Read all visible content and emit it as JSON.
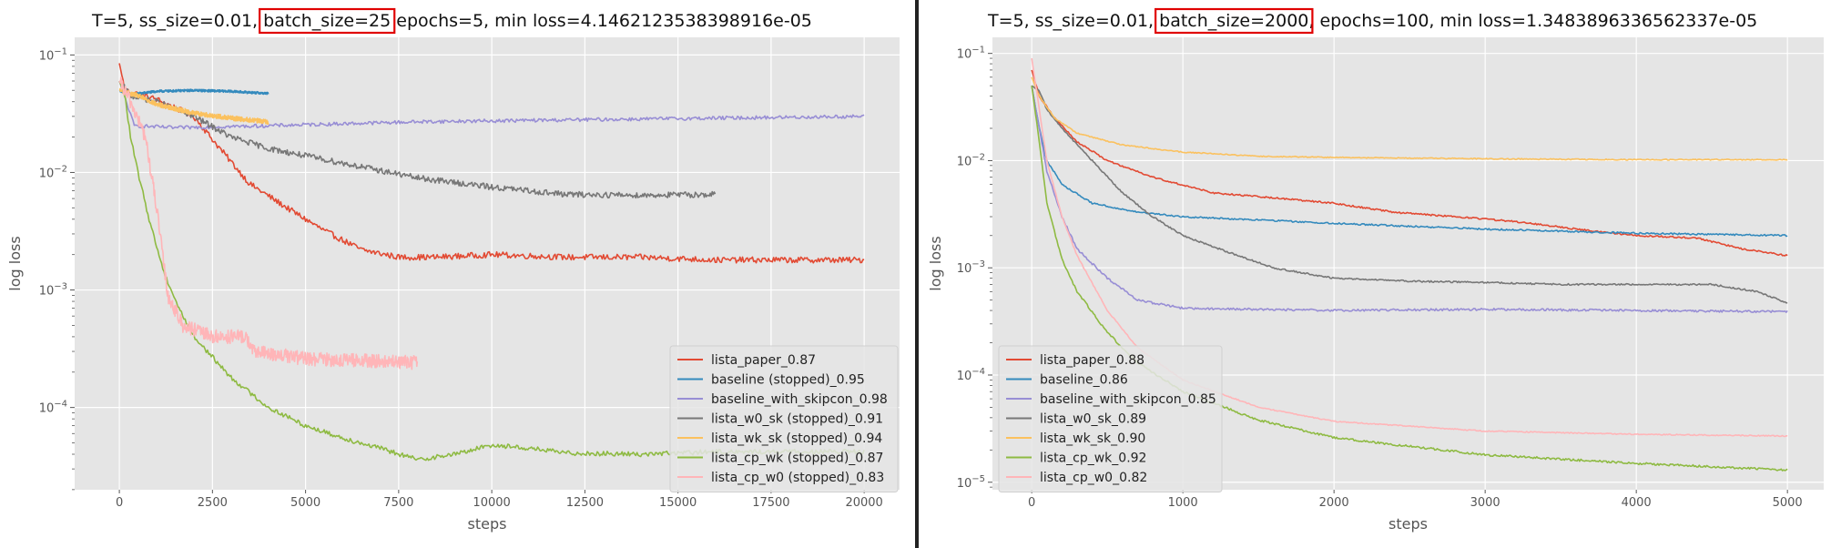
{
  "chart_data": [
    {
      "type": "line",
      "title_parts": [
        "T=5,  ss_size=0.01, ",
        "batch_size=25",
        "  epochs=5,  min loss=4.1462123538398916e-05"
      ],
      "highlight_color": "#e00000",
      "xlabel": "steps",
      "ylabel": "log loss",
      "yscale": "log",
      "xlim": [
        -1200,
        20950
      ],
      "ylim_log10": [
        -4.7,
        -0.85
      ],
      "xticks": [
        0,
        2500,
        5000,
        7500,
        10000,
        12500,
        15000,
        17500,
        20000
      ],
      "xtick_labels": [
        "0",
        "2500",
        "5000",
        "7500",
        "10000",
        "12500",
        "15000",
        "17500",
        "20000"
      ],
      "yticks_exp": [
        -4,
        -3,
        -2,
        -1
      ],
      "ytick_bases": [
        "10",
        "10",
        "10",
        "10"
      ],
      "ytick_exps": [
        "−4",
        "−3",
        "−2",
        "−1"
      ],
      "grid": true,
      "legend_position": "lower-right",
      "series": [
        {
          "name": "lista_paper_0.87",
          "color": "#E24A33",
          "noise": 0.05,
          "points": [
            [
              0,
              0.085
            ],
            [
              150,
              0.05
            ],
            [
              1000,
              0.042
            ],
            [
              2000,
              0.03
            ],
            [
              2700,
              0.016
            ],
            [
              3500,
              0.008
            ],
            [
              4500,
              0.005
            ],
            [
              5500,
              0.0032
            ],
            [
              6500,
              0.0022
            ],
            [
              7500,
              0.0019
            ],
            [
              8500,
              0.0019
            ],
            [
              10000,
              0.002
            ],
            [
              12000,
              0.0019
            ],
            [
              14000,
              0.0019
            ],
            [
              16000,
              0.0018
            ],
            [
              18000,
              0.0018
            ],
            [
              20000,
              0.0018
            ]
          ]
        },
        {
          "name": "baseline (stopped)_0.95",
          "color": "#348ABD",
          "noise": 0.02,
          "points": [
            [
              0,
              0.05
            ],
            [
              300,
              0.046
            ],
            [
              1000,
              0.049
            ],
            [
              2000,
              0.05
            ],
            [
              3000,
              0.049
            ],
            [
              4000,
              0.047
            ]
          ]
        },
        {
          "name": "baseline_with_skipcon_0.98",
          "color": "#988ED5",
          "noise": 0.03,
          "points": [
            [
              0,
              0.06
            ],
            [
              400,
              0.025
            ],
            [
              1500,
              0.024
            ],
            [
              4000,
              0.025
            ],
            [
              8000,
              0.027
            ],
            [
              12000,
              0.028
            ],
            [
              16000,
              0.029
            ],
            [
              20000,
              0.03
            ]
          ]
        },
        {
          "name": "lista_w0_sk (stopped)_0.91",
          "color": "#777777",
          "noise": 0.05,
          "points": [
            [
              0,
              0.06
            ],
            [
              300,
              0.045
            ],
            [
              1000,
              0.04
            ],
            [
              2000,
              0.03
            ],
            [
              3000,
              0.02
            ],
            [
              4000,
              0.016
            ],
            [
              6000,
              0.012
            ],
            [
              8000,
              0.009
            ],
            [
              10000,
              0.0075
            ],
            [
              12000,
              0.0065
            ],
            [
              14000,
              0.0064
            ],
            [
              16000,
              0.0065
            ]
          ]
        },
        {
          "name": "lista_wk_sk (stopped)_0.94",
          "color": "#FBC15E",
          "noise": 0.04,
          "points": [
            [
              0,
              0.05
            ],
            [
              500,
              0.045
            ],
            [
              1000,
              0.038
            ],
            [
              2000,
              0.032
            ],
            [
              3000,
              0.029
            ],
            [
              4000,
              0.027
            ]
          ]
        },
        {
          "name": "lista_cp_wk (stopped)_0.87",
          "color": "#8EBA42",
          "noise": 0.04,
          "points": [
            [
              0,
              0.06
            ],
            [
              150,
              0.045
            ],
            [
              300,
              0.02
            ],
            [
              500,
              0.01
            ],
            [
              800,
              0.004
            ],
            [
              1200,
              0.0014
            ],
            [
              1600,
              0.0007
            ],
            [
              2000,
              0.0004
            ],
            [
              3000,
              0.00018
            ],
            [
              4000,
              0.0001
            ],
            [
              5000,
              7e-05
            ],
            [
              6000,
              5.5e-05
            ],
            [
              7000,
              4.5e-05
            ],
            [
              8000,
              3.6e-05
            ],
            [
              9000,
              4e-05
            ],
            [
              10000,
              4.8e-05
            ],
            [
              11000,
              4.5e-05
            ],
            [
              12000,
              4.1e-05
            ],
            [
              14000,
              4e-05
            ],
            [
              16000,
              4.2e-05
            ],
            [
              20000,
              4.2e-05
            ]
          ]
        },
        {
          "name": "lista_cp_w0 (stopped)_0.83",
          "color": "#FFB5B8",
          "noise": 0.12,
          "points": [
            [
              0,
              0.06
            ],
            [
              300,
              0.04
            ],
            [
              700,
              0.02
            ],
            [
              1000,
              0.005
            ],
            [
              1300,
              0.0009
            ],
            [
              1700,
              0.0005
            ],
            [
              2500,
              0.0004
            ],
            [
              3400,
              0.0004
            ],
            [
              3600,
              0.0003
            ],
            [
              5000,
              0.00026
            ],
            [
              6500,
              0.00025
            ],
            [
              8000,
              0.00024
            ]
          ]
        }
      ]
    },
    {
      "type": "line",
      "title_parts": [
        "T=5,  ss_size=0.01, ",
        "batch_size=2000",
        ", epochs=100,  min loss=1.3483896336562337e-05"
      ],
      "highlight_color": "#e00000",
      "xlabel": "steps",
      "ylabel": "log loss",
      "yscale": "log",
      "xlim": [
        -260,
        5240
      ],
      "ylim_log10": [
        -5.07,
        -0.85
      ],
      "xticks": [
        0,
        1000,
        2000,
        3000,
        4000,
        5000
      ],
      "xtick_labels": [
        "0",
        "1000",
        "2000",
        "3000",
        "4000",
        "5000"
      ],
      "yticks_exp": [
        -5,
        -4,
        -3,
        -2,
        -1
      ],
      "ytick_bases": [
        "10",
        "10",
        "10",
        "10",
        "10"
      ],
      "ytick_exps": [
        "−5",
        "−4",
        "−3",
        "−2",
        "−1"
      ],
      "grid": true,
      "legend_position": "lower-left",
      "series": [
        {
          "name": "lista_paper_0.88",
          "color": "#E24A33",
          "noise": 0.015,
          "points": [
            [
              0,
              0.07
            ],
            [
              50,
              0.04
            ],
            [
              150,
              0.025
            ],
            [
              300,
              0.015
            ],
            [
              500,
              0.01
            ],
            [
              800,
              0.007
            ],
            [
              1200,
              0.005
            ],
            [
              1600,
              0.0045
            ],
            [
              2000,
              0.004
            ],
            [
              2400,
              0.0033
            ],
            [
              2800,
              0.003
            ],
            [
              3200,
              0.0027
            ],
            [
              3600,
              0.0023
            ],
            [
              4000,
              0.002
            ],
            [
              4400,
              0.0019
            ],
            [
              4700,
              0.0015
            ],
            [
              5000,
              0.0013
            ]
          ]
        },
        {
          "name": "baseline_0.86",
          "color": "#348ABD",
          "noise": 0.015,
          "points": [
            [
              0,
              0.05
            ],
            [
              50,
              0.02
            ],
            [
              100,
              0.01
            ],
            [
              200,
              0.006
            ],
            [
              400,
              0.004
            ],
            [
              700,
              0.0033
            ],
            [
              1000,
              0.003
            ],
            [
              2000,
              0.0026
            ],
            [
              3000,
              0.0023
            ],
            [
              4000,
              0.0021
            ],
            [
              5000,
              0.002
            ]
          ]
        },
        {
          "name": "baseline_with_skipcon_0.85",
          "color": "#988ED5",
          "noise": 0.02,
          "points": [
            [
              0,
              0.05
            ],
            [
              50,
              0.02
            ],
            [
              100,
              0.008
            ],
            [
              200,
              0.003
            ],
            [
              300,
              0.0015
            ],
            [
              500,
              0.0008
            ],
            [
              700,
              0.0005
            ],
            [
              1000,
              0.00042
            ],
            [
              2000,
              0.0004
            ],
            [
              3000,
              0.00041
            ],
            [
              4000,
              0.0004
            ],
            [
              5000,
              0.00039
            ]
          ]
        },
        {
          "name": "lista_w0_sk_0.89",
          "color": "#777777",
          "noise": 0.015,
          "points": [
            [
              0,
              0.05
            ],
            [
              50,
              0.045
            ],
            [
              100,
              0.03
            ],
            [
              200,
              0.02
            ],
            [
              400,
              0.01
            ],
            [
              600,
              0.005
            ],
            [
              800,
              0.003
            ],
            [
              1000,
              0.002
            ],
            [
              1300,
              0.0014
            ],
            [
              1600,
              0.001
            ],
            [
              2000,
              0.0008
            ],
            [
              2500,
              0.00075
            ],
            [
              3000,
              0.00073
            ],
            [
              3500,
              0.0007
            ],
            [
              4000,
              0.0007
            ],
            [
              4500,
              0.0007
            ],
            [
              4800,
              0.0006
            ],
            [
              5000,
              0.00047
            ]
          ]
        },
        {
          "name": "lista_wk_sk_0.90",
          "color": "#FBC15E",
          "noise": 0.01,
          "points": [
            [
              0,
              0.06
            ],
            [
              50,
              0.04
            ],
            [
              150,
              0.025
            ],
            [
              300,
              0.018
            ],
            [
              600,
              0.014
            ],
            [
              1000,
              0.012
            ],
            [
              1500,
              0.011
            ],
            [
              2000,
              0.0107
            ],
            [
              3000,
              0.0104
            ],
            [
              4000,
              0.0102
            ],
            [
              5000,
              0.0102
            ]
          ]
        },
        {
          "name": "lista_cp_wk_0.92",
          "color": "#8EBA42",
          "noise": 0.02,
          "points": [
            [
              0,
              0.05
            ],
            [
              50,
              0.015
            ],
            [
              100,
              0.004
            ],
            [
              200,
              0.0012
            ],
            [
              300,
              0.0006
            ],
            [
              500,
              0.00025
            ],
            [
              700,
              0.00013
            ],
            [
              1000,
              7e-05
            ],
            [
              1500,
              3.8e-05
            ],
            [
              2000,
              2.6e-05
            ],
            [
              3000,
              1.8e-05
            ],
            [
              4000,
              1.5e-05
            ],
            [
              5000,
              1.3e-05
            ]
          ]
        },
        {
          "name": "lista_cp_w0_0.82",
          "color": "#FFB5B8",
          "noise": 0.01,
          "points": [
            [
              0,
              0.09
            ],
            [
              50,
              0.03
            ],
            [
              100,
              0.01
            ],
            [
              200,
              0.003
            ],
            [
              300,
              0.0013
            ],
            [
              500,
              0.0004
            ],
            [
              700,
              0.00018
            ],
            [
              1000,
              9e-05
            ],
            [
              1500,
              5e-05
            ],
            [
              2000,
              3.7e-05
            ],
            [
              3000,
              3e-05
            ],
            [
              4000,
              2.8e-05
            ],
            [
              5000,
              2.7e-05
            ]
          ]
        }
      ]
    }
  ]
}
